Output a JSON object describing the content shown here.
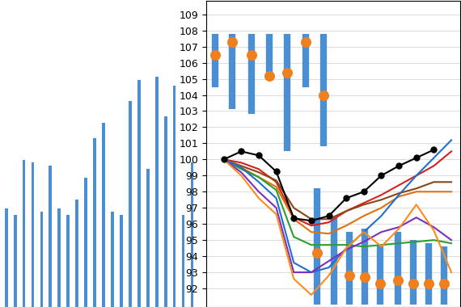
{
  "chart_data": [
    {
      "type": "bar",
      "categories": [
        null,
        null,
        null,
        null,
        null,
        null,
        null,
        null,
        null,
        null,
        null,
        null,
        null,
        null,
        null,
        null,
        null,
        null,
        null,
        null,
        null,
        null
      ],
      "values": [
        32,
        30,
        48,
        47,
        31,
        46,
        32,
        30,
        35,
        42,
        55,
        60,
        31,
        30,
        67,
        74,
        45,
        75,
        62,
        72,
        30,
        47
      ],
      "color": "#4a8fd4",
      "ylim": [
        0,
        100
      ],
      "tick_labels": false
    },
    {
      "type": "line",
      "x": [
        0,
        1,
        2,
        3,
        4,
        5,
        6,
        7,
        8,
        9,
        10,
        11,
        12,
        13
      ],
      "xlim": [
        -1,
        13.5
      ],
      "xticks": [],
      "ylim": [
        90.85,
        109.85
      ],
      "yticks": [
        92,
        93,
        94,
        95,
        96,
        97,
        98,
        99,
        100,
        101,
        102,
        103,
        104,
        105,
        106,
        107,
        108,
        109
      ],
      "grid": true,
      "tick_labels": "y",
      "ranges": [
        {
          "x": -0.5,
          "low": 104.5,
          "high": 107.8,
          "mark": 106.5
        },
        {
          "x": 0.5,
          "low": 103.1,
          "high": 107.8,
          "mark": 107.3
        },
        {
          "x": 1.6,
          "low": 102.8,
          "high": 107.8,
          "mark": 106.5
        },
        {
          "x": 2.6,
          "low": 105.4,
          "high": 107.8,
          "mark": 105.2
        },
        {
          "x": 3.6,
          "low": 100.5,
          "high": 107.8,
          "mark": 105.4
        },
        {
          "x": 4.7,
          "low": 104.5,
          "high": 107.8,
          "mark": 107.3
        },
        {
          "x": 5.7,
          "low": 100.8,
          "high": 107.8,
          "mark": 104
        },
        {
          "x": 5.35,
          "low": 91,
          "high": 98.2,
          "mark": 94.2
        },
        {
          "x": 6.3,
          "low": 91,
          "high": 96.4,
          "mark": null
        },
        {
          "x": 7.2,
          "low": 91,
          "high": 95.5,
          "mark": 92.8
        },
        {
          "x": 8.05,
          "low": 91,
          "high": 95.7,
          "mark": 92.7
        },
        {
          "x": 8.95,
          "low": 91,
          "high": 94.7,
          "mark": 92.3
        },
        {
          "x": 9.95,
          "low": 91,
          "high": 95.5,
          "mark": 92.5
        },
        {
          "x": 10.85,
          "low": 91,
          "high": 95,
          "mark": 92.3
        },
        {
          "x": 11.7,
          "low": 91,
          "high": 94.8,
          "mark": 92.3
        },
        {
          "x": 12.6,
          "low": 91,
          "high": 94.6,
          "mark": 92.3
        }
      ],
      "range_color": "#4a8fd4",
      "mark_color": "#f07f1e",
      "series": [
        {
          "color": "#d62020",
          "values": [
            100,
            99.8,
            99.4,
            98.6,
            96.4,
            95.9,
            96.1,
            96.8,
            97.3,
            97.8,
            98.4,
            99,
            99.6,
            100.5
          ]
        },
        {
          "color": "#8b4513",
          "values": [
            100,
            99.6,
            99.2,
            98.7,
            97,
            96.3,
            96.3,
            96.8,
            97.2,
            97.5,
            97.9,
            98.2,
            98.6,
            98.6
          ]
        },
        {
          "color": "#e07010",
          "values": [
            100,
            99.5,
            98.9,
            98.3,
            96.3,
            95.5,
            95.4,
            95.9,
            96.5,
            97,
            97.7,
            98,
            98,
            98
          ]
        },
        {
          "color": "#2ca02c",
          "values": [
            100,
            99.4,
            98.9,
            98.1,
            95.2,
            94.7,
            94.7,
            94.7,
            94.6,
            94.7,
            94.8,
            94.9,
            95,
            94.8
          ]
        },
        {
          "color": "#1f6fd0",
          "values": [
            100,
            99.5,
            98.6,
            97.6,
            93.6,
            93,
            93.3,
            94.5,
            95.5,
            96.5,
            97.8,
            99,
            100.1,
            101.2
          ]
        },
        {
          "color": "#7b2fbf",
          "values": [
            100,
            99.2,
            98,
            97,
            93,
            93,
            93.7,
            94.4,
            94.9,
            95.5,
            95.8,
            96.4,
            95.8,
            95
          ]
        },
        {
          "color": "#ff8c1a",
          "values": [
            100,
            99,
            97.6,
            96.6,
            92.6,
            91.6,
            92.8,
            94.5,
            95.5,
            94.6,
            95.7,
            97.2,
            95.6,
            93
          ]
        },
        {
          "color": "#000000",
          "marker": "o",
          "values": [
            100,
            100.5,
            100.25,
            99.25,
            96.35,
            96.2,
            96.5,
            97.6,
            98,
            99,
            99.6,
            100.1,
            100.6,
            null
          ]
        }
      ]
    }
  ]
}
